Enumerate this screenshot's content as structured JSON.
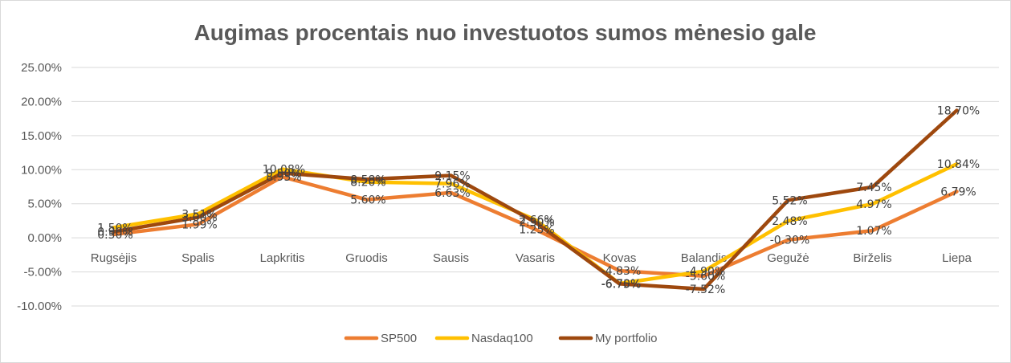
{
  "chart_data": {
    "type": "line",
    "title": "Augimas procentais nuo investuotos sumos mėnesio gale",
    "categories": [
      "Rugsėjis",
      "Spalis",
      "Lapkritis",
      "Gruodis",
      "Sausis",
      "Vasaris",
      "Kovas",
      "Balandis",
      "Gegužė",
      "Birželis",
      "Liepa"
    ],
    "y_ticks": [
      "25.00%",
      "20.00%",
      "15.00%",
      "10.00%",
      "5.00%",
      "0.00%",
      "-5.00%",
      "-10.00%"
    ],
    "ylim": [
      -10,
      25
    ],
    "grid": true,
    "legend_position": "bottom",
    "series": [
      {
        "name": "SP500",
        "color": "#ed7d31",
        "values": [
          0.5,
          1.99,
          8.95,
          5.6,
          6.63,
          1.25,
          -4.83,
          -5.6,
          -0.3,
          1.07,
          6.79
        ],
        "labels": [
          "0.50%",
          "1.99%",
          "8.95%",
          "5.60%",
          "6.63%",
          "1.25%",
          "-4.83%",
          "-5.60%",
          "-0.30%",
          "1.07%",
          "6.79%"
        ]
      },
      {
        "name": "Nasdaq100",
        "color": "#ffc000",
        "values": [
          1.5,
          3.51,
          10.08,
          8.2,
          7.96,
          2.66,
          -6.7,
          -4.9,
          2.48,
          4.97,
          10.84
        ],
        "labels": [
          "1.50%",
          "3.51%",
          "10.08%",
          "8.20%",
          "7.96%",
          "2.66%",
          "-6.70%",
          "-4.90%",
          "2.48%",
          "4.97%",
          "10.84%"
        ]
      },
      {
        "name": "My portfolio",
        "color": "#9e480e",
        "values": [
          0.9,
          3.0,
          9.5,
          8.58,
          9.15,
          2.3,
          -6.75,
          -7.52,
          5.52,
          7.45,
          18.7
        ],
        "labels": [
          "0.90%",
          "3.00%",
          "9.50%",
          "8.58%",
          "9.15%",
          "2.30%",
          "-6.75%",
          "-7.52%",
          "5.52%",
          "7.45%",
          "18.70%"
        ]
      }
    ]
  }
}
